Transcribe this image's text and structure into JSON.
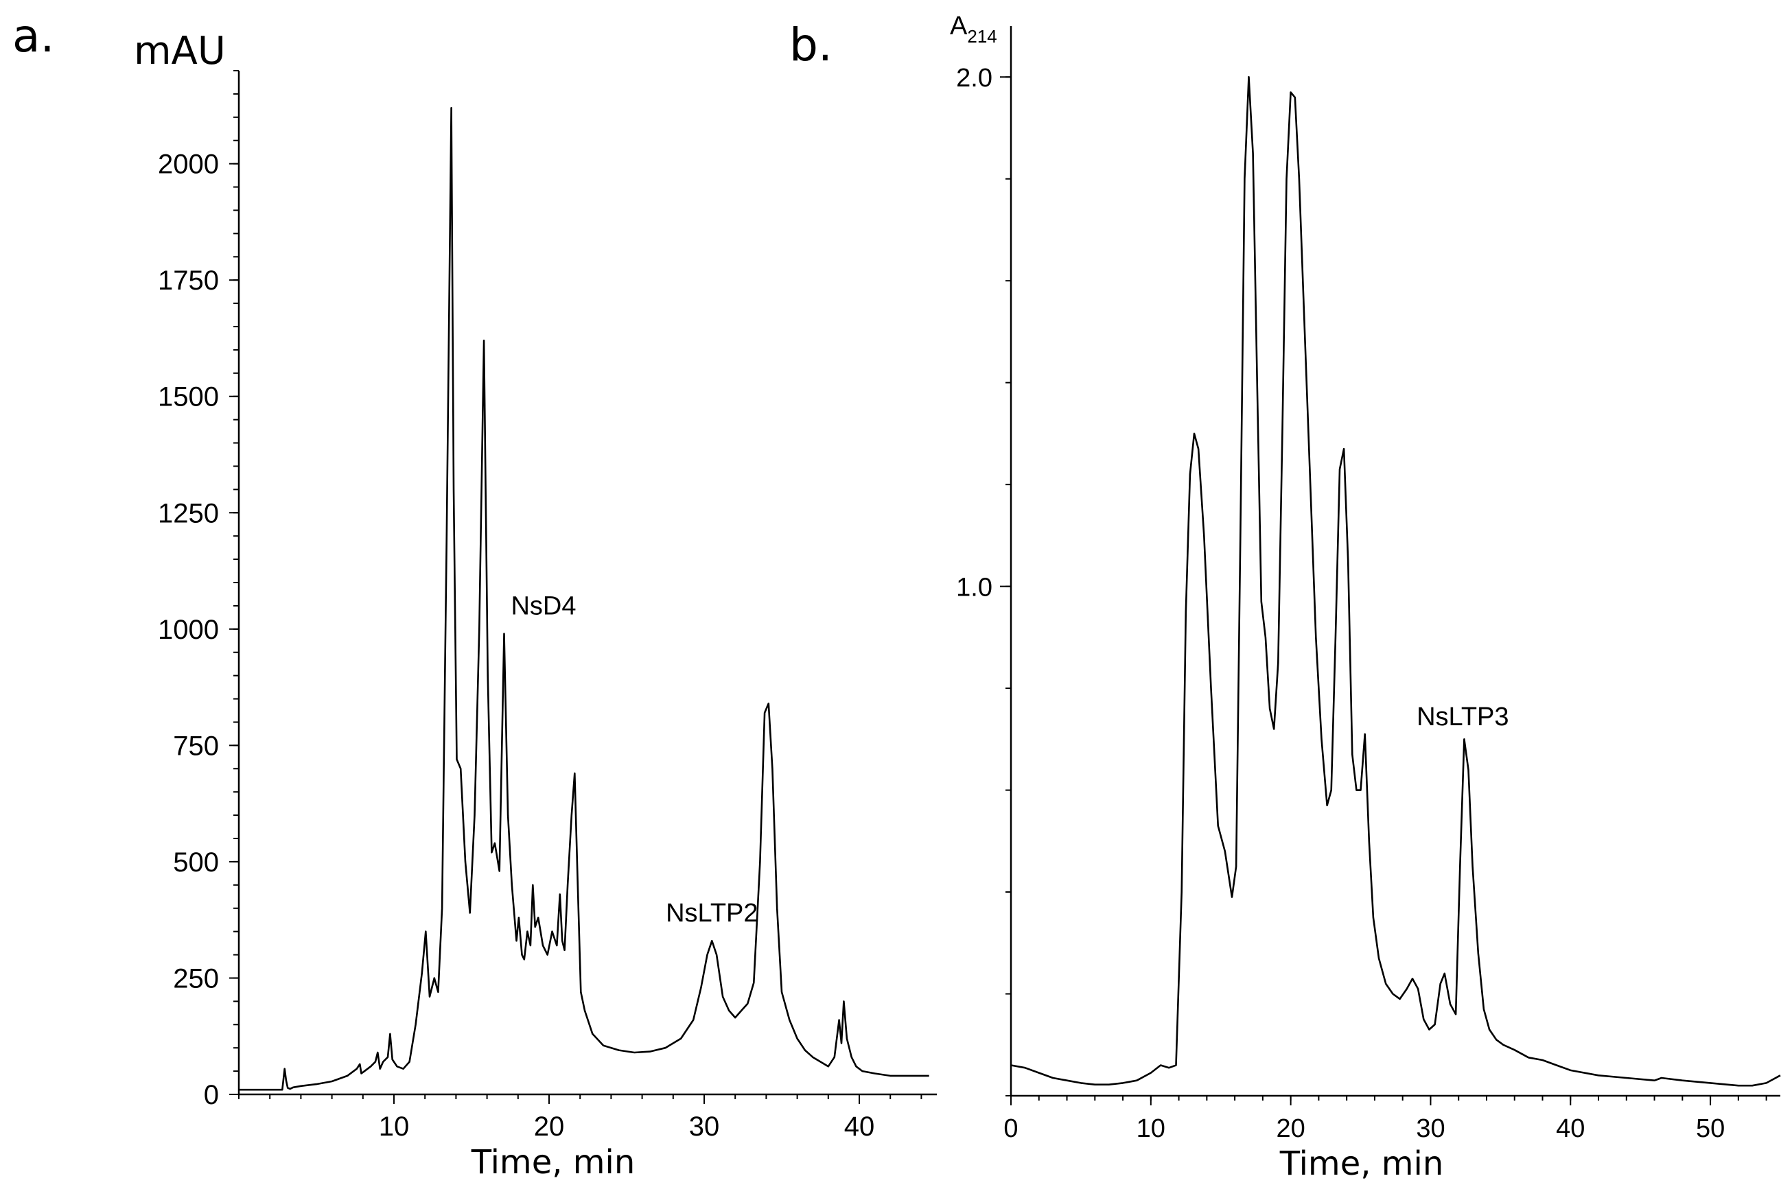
{
  "chart_data": [
    {
      "panel": "a.",
      "type": "line",
      "ylabel": "mAU",
      "xlabel": "Time, min",
      "xlim": [
        0,
        45
      ],
      "ylim": [
        0,
        2200
      ],
      "xticks": [
        10,
        20,
        30,
        40
      ],
      "yticks": [
        0,
        250,
        500,
        750,
        1000,
        1250,
        1500,
        1750,
        2000
      ],
      "xtick_labels": [
        "10",
        "20",
        "30",
        "40"
      ],
      "ytick_labels": [
        "0",
        "250",
        "500",
        "750",
        "1000",
        "1250",
        "1500",
        "1750",
        "2000"
      ],
      "annotations": [
        {
          "text": "NsD4",
          "x": 17.1,
          "y": 990
        },
        {
          "text": "NsLTP2",
          "x": 30.5,
          "y": 330
        }
      ],
      "series": [
        {
          "x": [
            0,
            2.8,
            2.95,
            3.05,
            3.15,
            3.3,
            3.5,
            4,
            5,
            6,
            7,
            7.6,
            7.8,
            7.9,
            8.1,
            8.5,
            8.8,
            8.95,
            9.1,
            9.3,
            9.6,
            9.75,
            9.9,
            10.2,
            10.6,
            11,
            11.4,
            11.8,
            12.05,
            12.3,
            12.6,
            12.85,
            13.1,
            13.4,
            13.7,
            13.85,
            14.05,
            14.3,
            14.6,
            14.9,
            15.2,
            15.5,
            15.8,
            16.05,
            16.3,
            16.5,
            16.8,
            17.1,
            17.35,
            17.6,
            17.9,
            18.05,
            18.25,
            18.4,
            18.6,
            18.8,
            18.95,
            19.1,
            19.3,
            19.6,
            19.9,
            20.2,
            20.5,
            20.7,
            20.85,
            21,
            21.2,
            21.45,
            21.65,
            21.85,
            22.05,
            22.3,
            22.8,
            23.5,
            24.5,
            25.5,
            26.5,
            27.5,
            28.5,
            29.3,
            29.8,
            30.2,
            30.5,
            30.8,
            31.2,
            31.6,
            32,
            32.4,
            32.8,
            33.2,
            33.6,
            33.9,
            34.15,
            34.4,
            34.7,
            35,
            35.5,
            36,
            36.5,
            37,
            37.5,
            38,
            38.4,
            38.7,
            38.85,
            39,
            39.2,
            39.5,
            39.8,
            40.2,
            41,
            42,
            43,
            44.5
          ],
          "y": [
            10,
            10,
            55,
            30,
            14,
            12,
            15,
            18,
            22,
            28,
            40,
            55,
            65,
            45,
            50,
            60,
            70,
            90,
            55,
            70,
            80,
            130,
            75,
            60,
            55,
            70,
            150,
            260,
            350,
            210,
            250,
            220,
            400,
            1200,
            2120,
            1300,
            720,
            700,
            500,
            390,
            600,
            1000,
            1620,
            900,
            520,
            540,
            480,
            990,
            600,
            450,
            330,
            380,
            300,
            290,
            350,
            320,
            450,
            360,
            380,
            320,
            300,
            350,
            320,
            430,
            330,
            310,
            450,
            600,
            690,
            450,
            220,
            180,
            130,
            105,
            95,
            90,
            92,
            100,
            120,
            160,
            230,
            300,
            330,
            300,
            210,
            180,
            165,
            180,
            195,
            240,
            500,
            820,
            840,
            700,
            400,
            220,
            160,
            120,
            95,
            80,
            70,
            60,
            80,
            160,
            110,
            200,
            120,
            80,
            60,
            50,
            45,
            40,
            40,
            40
          ]
        }
      ]
    },
    {
      "panel": "b.",
      "type": "line",
      "ylabel": "A",
      "ylabel_sub": "214",
      "xlabel": "Time, min",
      "xlim": [
        0,
        55
      ],
      "ylim": [
        0,
        2.1
      ],
      "xticks": [
        0,
        10,
        20,
        30,
        40,
        50
      ],
      "yticks": [
        1.0,
        2.0
      ],
      "xtick_labels": [
        "0",
        "10",
        "20",
        "30",
        "40",
        "50"
      ],
      "ytick_labels": [
        "1.0",
        "2.0"
      ],
      "annotations": [
        {
          "text": "NsLTP3",
          "x": 32.3,
          "y": 0.69
        }
      ],
      "series": [
        {
          "x": [
            0,
            1,
            2,
            3,
            4,
            5,
            6,
            7,
            8,
            9,
            10,
            10.7,
            11.3,
            11.8,
            12.2,
            12.5,
            12.8,
            13.1,
            13.4,
            13.8,
            14.3,
            14.8,
            15.3,
            15.8,
            16.1,
            16.4,
            16.7,
            17,
            17.3,
            17.6,
            17.9,
            18.2,
            18.5,
            18.8,
            19.1,
            19.4,
            19.7,
            20,
            20.3,
            20.6,
            21,
            21.4,
            21.8,
            22.2,
            22.6,
            22.9,
            23.2,
            23.5,
            23.8,
            24.1,
            24.4,
            24.7,
            25,
            25.3,
            25.6,
            25.9,
            26.3,
            26.8,
            27.3,
            27.8,
            28.3,
            28.7,
            29.1,
            29.5,
            29.9,
            30.3,
            30.7,
            31,
            31.4,
            31.8,
            32.1,
            32.4,
            32.7,
            33,
            33.4,
            33.8,
            34.2,
            34.7,
            35.2,
            36,
            37,
            38,
            39,
            40,
            42,
            44,
            46,
            46.5,
            48,
            50,
            52,
            53,
            54,
            55
          ],
          "y": [
            0.06,
            0.055,
            0.045,
            0.035,
            0.03,
            0.025,
            0.022,
            0.022,
            0.025,
            0.03,
            0.045,
            0.06,
            0.055,
            0.06,
            0.4,
            0.95,
            1.22,
            1.3,
            1.27,
            1.1,
            0.8,
            0.53,
            0.48,
            0.39,
            0.45,
            1.1,
            1.8,
            2.0,
            1.85,
            1.4,
            0.97,
            0.9,
            0.76,
            0.72,
            0.85,
            1.3,
            1.8,
            1.97,
            1.96,
            1.8,
            1.5,
            1.2,
            0.9,
            0.7,
            0.57,
            0.6,
            0.9,
            1.23,
            1.27,
            1.05,
            0.67,
            0.6,
            0.6,
            0.71,
            0.5,
            0.35,
            0.27,
            0.22,
            0.2,
            0.19,
            0.21,
            0.23,
            0.21,
            0.15,
            0.13,
            0.14,
            0.22,
            0.24,
            0.18,
            0.16,
            0.45,
            0.7,
            0.64,
            0.45,
            0.28,
            0.17,
            0.13,
            0.11,
            0.1,
            0.09,
            0.075,
            0.07,
            0.06,
            0.05,
            0.04,
            0.035,
            0.03,
            0.035,
            0.03,
            0.025,
            0.02,
            0.02,
            0.025,
            0.04
          ]
        }
      ]
    }
  ]
}
